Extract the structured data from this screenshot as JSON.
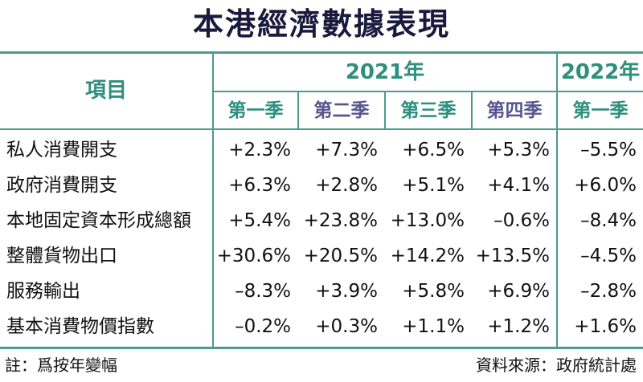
{
  "title": "本港經濟數據表現",
  "header": {
    "item_label": "項目",
    "year_2021": "2021年",
    "year_2022": "2022年",
    "quarters": [
      "第一季",
      "第二季",
      "第三季",
      "第四季",
      "第一季"
    ]
  },
  "rows": [
    {
      "label": "私人消費開支",
      "values": [
        "+2.3%",
        "+7.3%",
        "+6.5%",
        "+5.3%",
        "–5.5%"
      ]
    },
    {
      "label": "政府消費開支",
      "values": [
        "+6.3%",
        "+2.8%",
        "+5.1%",
        "+4.1%",
        "+6.0%"
      ]
    },
    {
      "label": "本地固定資本形成總額",
      "values": [
        "+5.4%",
        "+23.8%",
        "+13.0%",
        "–0.6%",
        "–8.4%"
      ]
    },
    {
      "label": "整體貨物出口",
      "values": [
        "+30.6%",
        "+20.5%",
        "+14.2%",
        "+13.5%",
        "–4.5%"
      ]
    },
    {
      "label": "服務輸出",
      "values": [
        "–8.3%",
        "+3.9%",
        "+5.8%",
        "+6.9%",
        "–2.8%"
      ]
    },
    {
      "label": "基本消費物價指數",
      "values": [
        "–0.2%",
        "+0.3%",
        "+1.1%",
        "+1.2%",
        "+1.6%"
      ]
    }
  ],
  "footer": {
    "note": "註：爲按年變幅",
    "source": "資料來源：政府統計處"
  },
  "colors": {
    "rule": "#4d9b8c",
    "header_teal": "#2e8f7d",
    "header_purple": "#57578f",
    "title": "#1a1a3e"
  }
}
